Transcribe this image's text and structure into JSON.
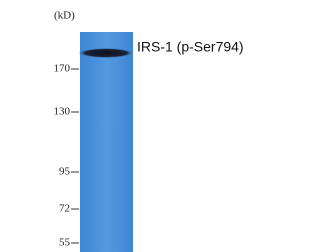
{
  "unit_label": "(kD)",
  "markers": [
    "170",
    "130",
    "95",
    "72",
    "55"
  ],
  "band_label": "IRS-1 (p-Ser794)"
}
